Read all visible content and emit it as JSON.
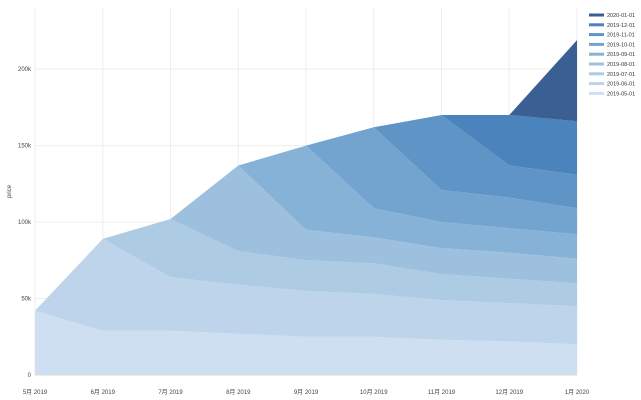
{
  "chart_data": {
    "type": "area",
    "stacked": true,
    "xlabel": "",
    "ylabel": "price",
    "x_ticks": [
      "5月 2019",
      "6月 2019",
      "7月 2019",
      "8月 2019",
      "9月 2019",
      "10月 2019",
      "11月 2019",
      "12月 2019",
      "1月 2020"
    ],
    "y_ticks": [
      "0",
      "50k",
      "100k",
      "150k",
      "200k"
    ],
    "ylim": [
      0,
      240000
    ],
    "grid": true,
    "legend_position": "right",
    "series": [
      {
        "name": "2019-05-01",
        "color": "#cddff0",
        "values": [
          42000,
          29000,
          29000,
          27000,
          25000,
          25000,
          23000,
          22000,
          20000
        ]
      },
      {
        "name": "2019-06-01",
        "color": "#bdd4ea",
        "values": [
          null,
          60000,
          35000,
          32000,
          30000,
          28000,
          26000,
          25000,
          25000
        ]
      },
      {
        "name": "2019-07-01",
        "color": "#aecbe4",
        "values": [
          null,
          null,
          38000,
          22000,
          20000,
          20000,
          17000,
          16000,
          15000
        ]
      },
      {
        "name": "2019-08-01",
        "color": "#9cc0de",
        "values": [
          null,
          null,
          null,
          56000,
          20000,
          17000,
          17000,
          17000,
          16000
        ]
      },
      {
        "name": "2019-09-01",
        "color": "#87b2d7",
        "values": [
          null,
          null,
          null,
          null,
          55000,
          19000,
          17000,
          16000,
          16000
        ]
      },
      {
        "name": "2019-10-01",
        "color": "#73a4cf",
        "values": [
          null,
          null,
          null,
          null,
          null,
          53000,
          21000,
          20000,
          17000
        ]
      },
      {
        "name": "2019-11-01",
        "color": "#5e94c6",
        "values": [
          null,
          null,
          null,
          null,
          null,
          null,
          49000,
          21000,
          22000
        ]
      },
      {
        "name": "2019-12-01",
        "color": "#4b83bc",
        "values": [
          null,
          null,
          null,
          null,
          null,
          null,
          null,
          33000,
          35000
        ]
      },
      {
        "name": "2020-01-01",
        "color": "#3a5f92",
        "values": [
          null,
          null,
          null,
          null,
          null,
          null,
          null,
          null,
          53000
        ]
      }
    ]
  }
}
